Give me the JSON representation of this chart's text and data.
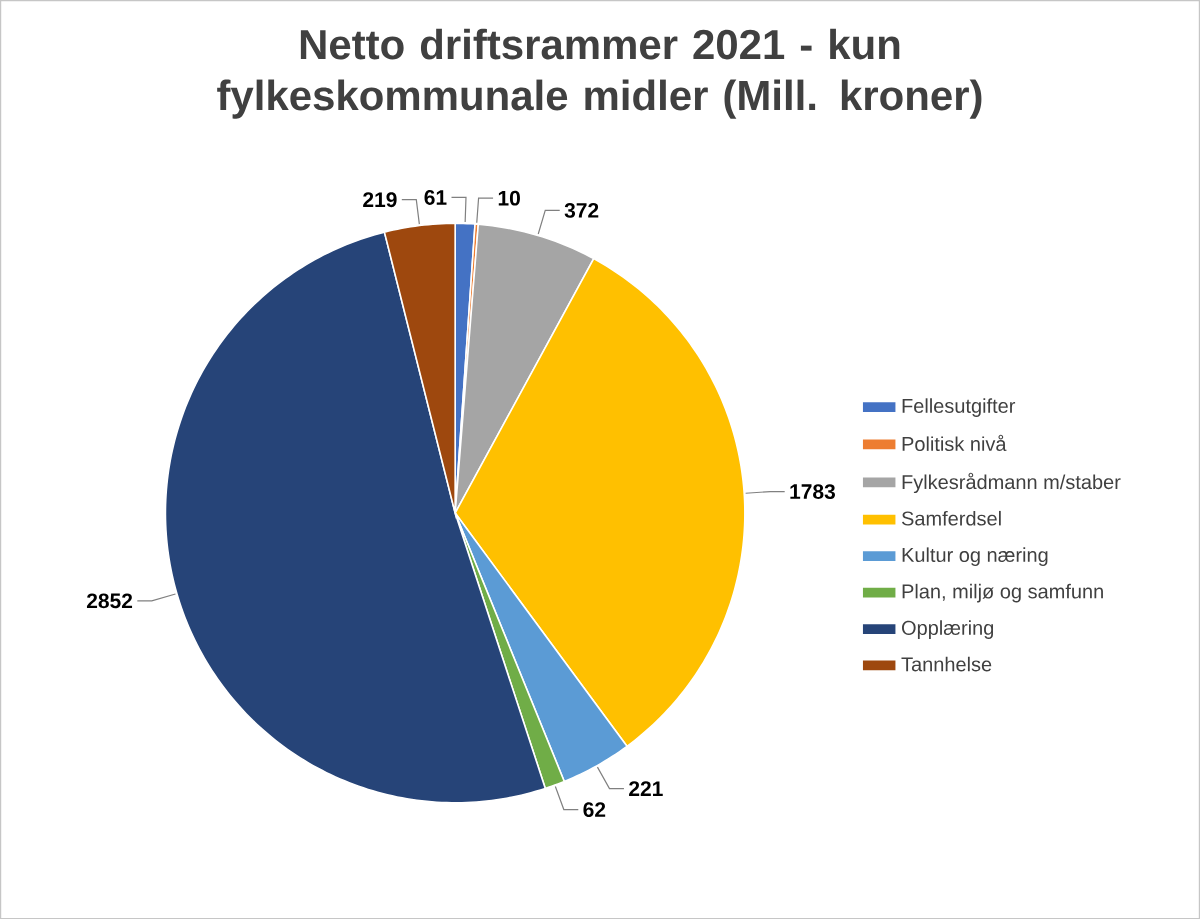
{
  "chart_data": {
    "type": "pie",
    "title": "Netto driftsrammer 2021 - kun fylkeskommunale midler (Mill. kroner)",
    "categories": [
      "Fellesutgifter",
      "Politisk nivå",
      "Fylkesrådmann m/staber",
      "Samferdsel",
      "Kultur og næring",
      "Plan, miljø og samfunn",
      "Opplæring",
      "Tannhelse"
    ],
    "values": [
      61,
      10,
      372,
      1783,
      221,
      62,
      2852,
      219
    ],
    "colors": [
      "#4472c4",
      "#ed7d31",
      "#a5a5a5",
      "#ffc000",
      "#5b9bd5",
      "#70ad47",
      "#264478",
      "#9e480e"
    ],
    "legend": "right",
    "data_labels": true
  }
}
